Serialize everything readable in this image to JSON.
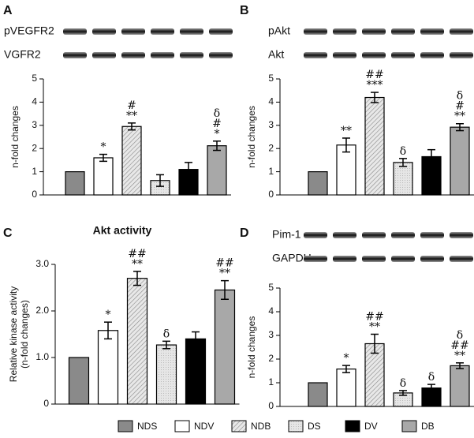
{
  "legend": {
    "labels": [
      "NDS",
      "NDV",
      "NDB",
      "DS",
      "DV",
      "DB"
    ],
    "colors": [
      "#8a8a8a",
      "#ffffff",
      "#d4d4d4",
      "#e4e4e4",
      "#000000",
      "#a8a8a8"
    ],
    "hatch": [
      false,
      false,
      true,
      true,
      false,
      false
    ]
  },
  "chart_data": [
    {
      "type": "bar",
      "panel": "A",
      "blot_labels": [
        "pVEGFR2",
        "VGFR2"
      ],
      "ylabel": "n-fold changes",
      "values": [
        1,
        1.6,
        2.95,
        0.62,
        1.1,
        2.12
      ],
      "errors": [
        0,
        0.15,
        0.15,
        0.25,
        0.3,
        0.2
      ],
      "annotations": [
        [],
        [
          "*"
        ],
        [
          "#",
          "**"
        ],
        [],
        [],
        [
          "δ",
          "#",
          "*"
        ]
      ],
      "ylim": [
        0,
        5
      ],
      "yticks": [
        0,
        1,
        2,
        3,
        4,
        5
      ]
    },
    {
      "type": "bar",
      "panel": "B",
      "blot_labels": [
        "pAkt",
        "Akt"
      ],
      "ylabel": "n-fold changes",
      "values": [
        1,
        2.15,
        4.2,
        1.4,
        1.65,
        2.92
      ],
      "errors": [
        0,
        0.3,
        0.22,
        0.17,
        0.3,
        0.15
      ],
      "annotations": [
        [],
        [
          "**"
        ],
        [
          "##",
          "***"
        ],
        [
          "δ"
        ],
        [],
        [
          "δ",
          "#",
          "**"
        ]
      ],
      "ylim": [
        0,
        5
      ],
      "yticks": [
        0,
        1,
        2,
        3,
        4,
        5
      ]
    },
    {
      "type": "bar",
      "panel": "C",
      "title": "Akt activity",
      "ylabel": [
        "Relative kinase activity",
        "(n-fold changes)"
      ],
      "values": [
        1,
        1.58,
        2.7,
        1.27,
        1.4,
        2.45
      ],
      "errors": [
        0,
        0.18,
        0.15,
        0.08,
        0.15,
        0.2
      ],
      "annotations": [
        [],
        [
          "*"
        ],
        [
          "##",
          "**"
        ],
        [
          "δ"
        ],
        [],
        [
          "##",
          "**"
        ]
      ],
      "ylim": [
        0,
        3
      ],
      "yticks": [
        0,
        {
          "value": 1,
          "label": "1.0"
        },
        {
          "value": 2,
          "label": "2.0"
        },
        {
          "value": 3,
          "label": "3.0"
        }
      ]
    },
    {
      "type": "bar",
      "panel": "D",
      "blot_labels": [
        "Pim-1",
        "GAPDH"
      ],
      "ylabel": "n-fold changes",
      "values": [
        1,
        1.58,
        2.65,
        0.57,
        0.78,
        1.72
      ],
      "errors": [
        0,
        0.15,
        0.4,
        0.1,
        0.15,
        0.12
      ],
      "annotations": [
        [],
        [
          "*"
        ],
        [
          "##",
          "**"
        ],
        [
          "δ"
        ],
        [
          "δ"
        ],
        [
          "δ",
          "##",
          "**"
        ]
      ],
      "ylim": [
        0,
        5
      ],
      "yticks": [
        0,
        1,
        2,
        3,
        4,
        5
      ]
    }
  ]
}
